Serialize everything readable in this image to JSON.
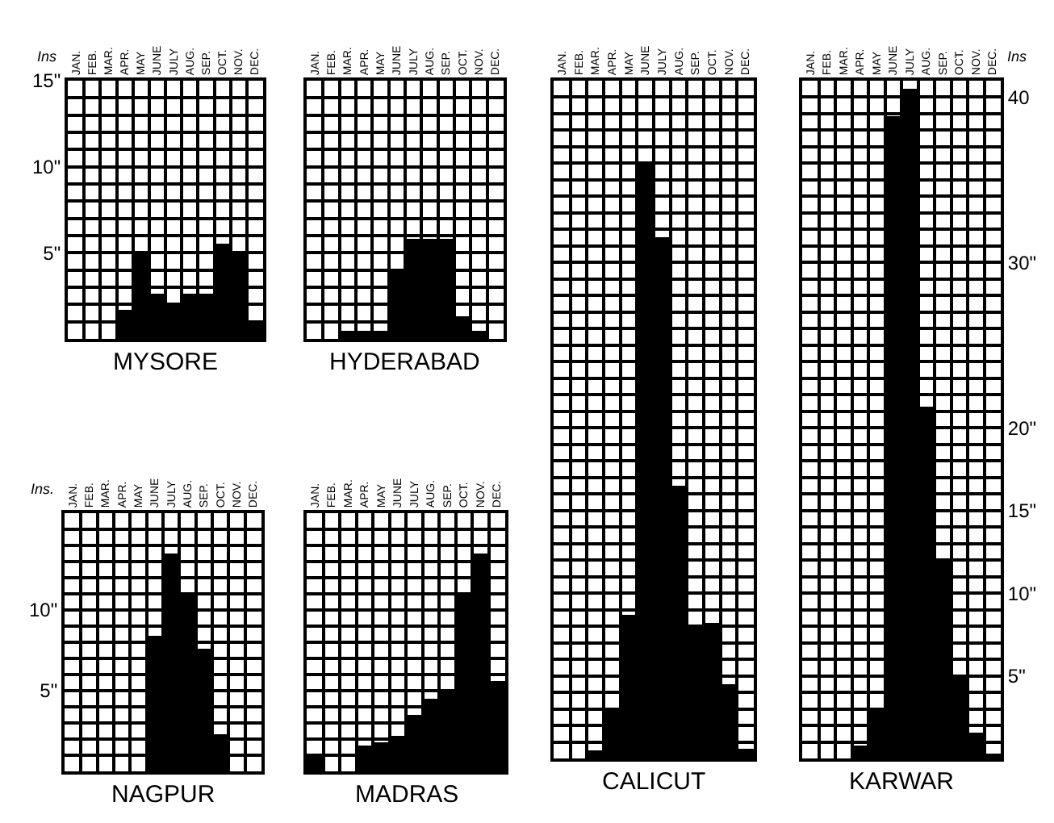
{
  "chart_data": [
    {
      "type": "bar",
      "title": "MYSORE",
      "ylabel": "Ins",
      "categories": [
        "JAN.",
        "FEB.",
        "MAR.",
        "APR.",
        "MAY",
        "JUNE",
        "JULY",
        "AUG.",
        "SEP.",
        "OCT.",
        "NOV.",
        "DEC."
      ],
      "series": [
        {
          "color": "#000000",
          "values": [
            0,
            0,
            0,
            1.7,
            5,
            2.6,
            2.1,
            2.6,
            2.6,
            5.5,
            5,
            1
          ]
        }
      ],
      "ylim": [
        0,
        15
      ],
      "yticks": [
        {
          "value": 5,
          "label": "5\""
        },
        {
          "value": 10,
          "label": "10\""
        },
        {
          "value": 15,
          "label": "15\""
        }
      ],
      "grid": true
    },
    {
      "type": "bar",
      "title": "HYDERABAD",
      "categories": [
        "JAN.",
        "FEB.",
        "MAR.",
        "APR.",
        "MAY",
        "JUNE",
        "JULY",
        "AUG.",
        "SEP.",
        "OCT.",
        "NOV.",
        "DEC."
      ],
      "series": [
        {
          "color": "#000000",
          "values": [
            0,
            0,
            0.5,
            0.5,
            0.5,
            4,
            5.8,
            5.8,
            5.8,
            1.3,
            0.5,
            0
          ]
        }
      ],
      "ylim": [
        0,
        15
      ],
      "tick_labels": "x",
      "grid": true
    },
    {
      "type": "bar",
      "title": "NAGPUR",
      "ylabel": "Ins.",
      "categories": [
        "JAN.",
        "FEB.",
        "MAR.",
        "APR.",
        "MAY",
        "JUNE",
        "JULY",
        "AUG.",
        "SEP.",
        "OCT.",
        "NOV.",
        "DEC."
      ],
      "series": [
        {
          "color": "#000000",
          "values": [
            0,
            0,
            0,
            0,
            0,
            8.4,
            13.5,
            11,
            7.6,
            2.3,
            0,
            0
          ]
        }
      ],
      "ylim": [
        0,
        16
      ],
      "yticks": [
        {
          "value": 5,
          "label": "5\""
        },
        {
          "value": 10,
          "label": "10\""
        }
      ],
      "grid": true
    },
    {
      "type": "bar",
      "title": "MADRAS",
      "categories": [
        "JAN.",
        "FEB.",
        "MAR.",
        "APR.",
        "MAY",
        "JUNE",
        "JULY",
        "AUG.",
        "SEP.",
        "OCT.",
        "NOV.",
        "DEC."
      ],
      "series": [
        {
          "color": "#000000",
          "values": [
            1,
            0,
            0,
            1.6,
            1.8,
            2.2,
            3.5,
            4.5,
            5,
            11,
            13.5,
            5.6
          ]
        }
      ],
      "ylim": [
        0,
        16
      ],
      "tick_labels": "x",
      "grid": true
    },
    {
      "type": "bar",
      "title": "CALICUT",
      "categories": [
        "JAN.",
        "FEB.",
        "MAR.",
        "APR.",
        "MAY",
        "JUNE",
        "JULY",
        "AUG.",
        "SEP.",
        "OCT.",
        "NOV.",
        "DEC."
      ],
      "series": [
        {
          "color": "#000000",
          "values": [
            0,
            0,
            0.5,
            3,
            8.7,
            36,
            31.5,
            16.5,
            8,
            8.2,
            4.5,
            0.6
          ]
        }
      ],
      "ylim": [
        0,
        41
      ],
      "tick_labels": "x",
      "grid": true
    },
    {
      "type": "bar",
      "title": "KARWAR",
      "ylabel": "Ins",
      "categories": [
        "JAN.",
        "FEB.",
        "MAR.",
        "APR.",
        "MAY",
        "JUNE",
        "JULY",
        "AUG.",
        "SEP.",
        "OCT.",
        "NOV.",
        "DEC."
      ],
      "series": [
        {
          "color": "#000000",
          "values": [
            0,
            0,
            0,
            0.8,
            2.9,
            38.9,
            40.5,
            21.3,
            12,
            5,
            1.6,
            0.3
          ]
        }
      ],
      "ylim": [
        0,
        41
      ],
      "yticks": [
        {
          "value": 5,
          "label": "5\""
        },
        {
          "value": 10,
          "label": "10\""
        },
        {
          "value": 15,
          "label": "15\""
        },
        {
          "value": 20,
          "label": "20\""
        },
        {
          "value": 30,
          "label": "30\""
        },
        {
          "value": 40,
          "label": "40"
        }
      ],
      "grid": true
    }
  ]
}
